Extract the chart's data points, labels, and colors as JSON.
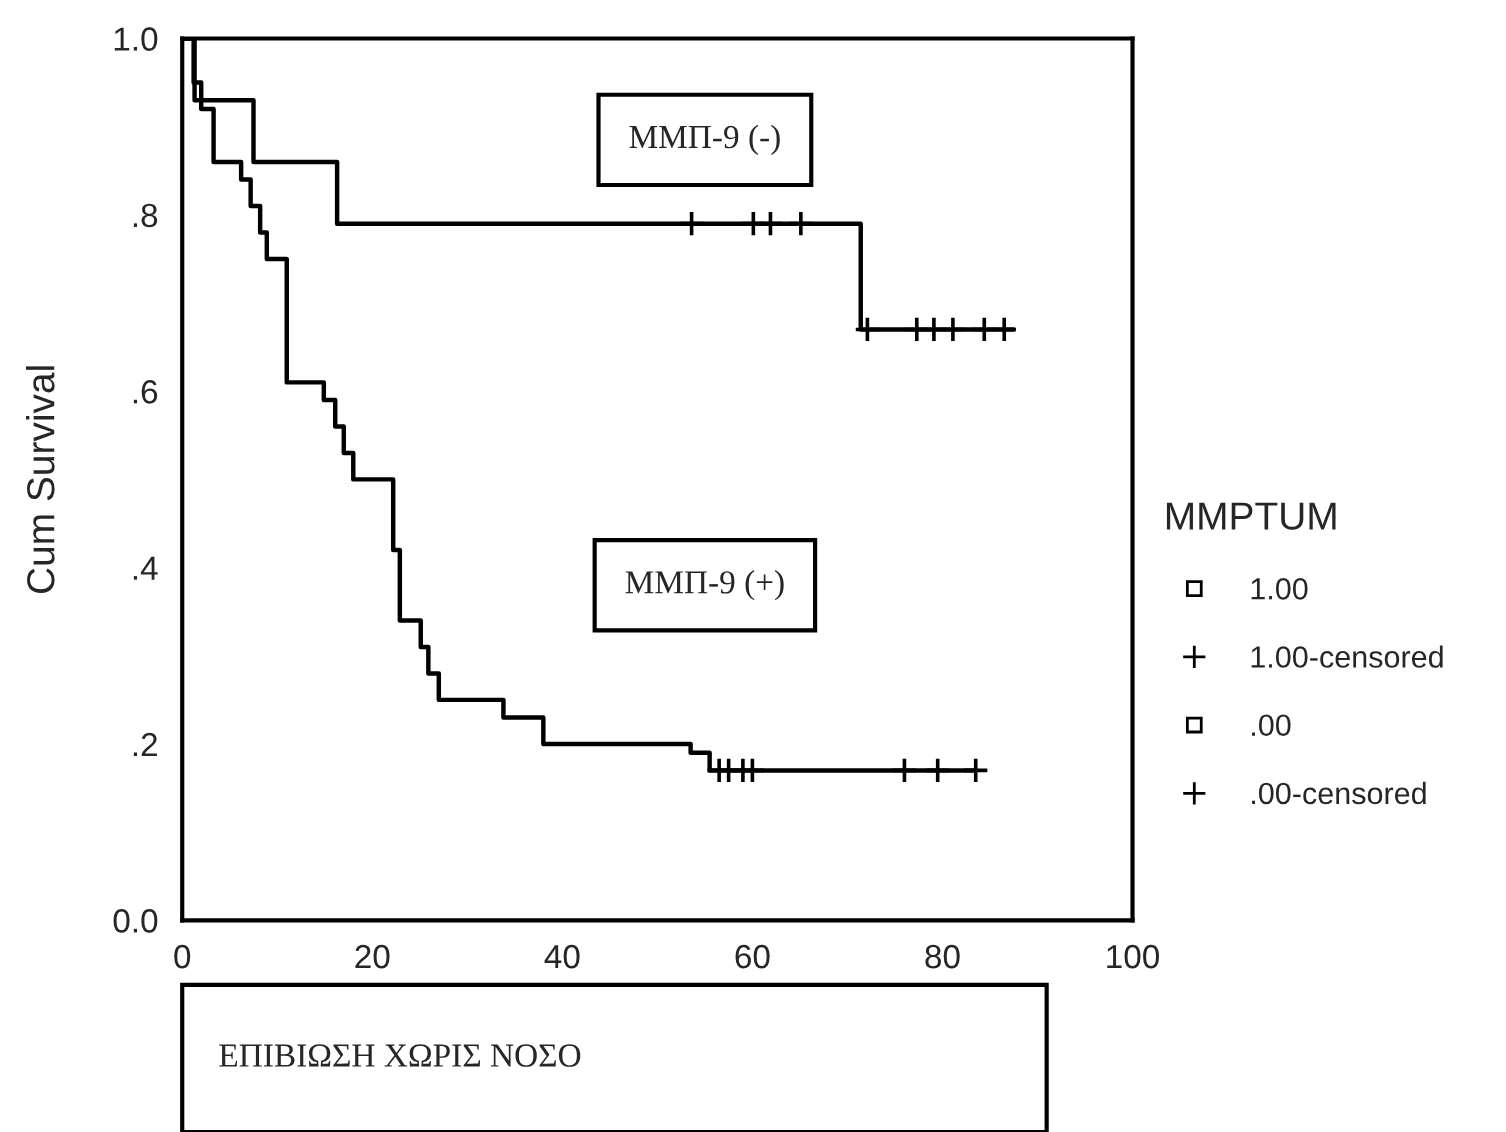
{
  "chart_data": {
    "type": "step",
    "ylabel": "Cum Survival",
    "xlabel": "ΕΠΙΒΙΩΣΗ ΧΩΡΙΣ ΝΟΣΟ",
    "legend_title": "MMPTUM",
    "legend": "right",
    "annotations": [
      "ΜΜΠ-9 (-)",
      "ΜΜΠ-9 (+)"
    ],
    "xlim": [
      0,
      100
    ],
    "xticks": [
      0,
      20,
      40,
      60,
      80,
      100
    ],
    "ylim": [
      0,
      1
    ],
    "yticks": [
      {
        "value": 0,
        "label": "0.0"
      },
      {
        "value": 0.2,
        "label": ".2"
      },
      {
        "value": 0.4,
        "label": ".4"
      },
      {
        "value": 0.6,
        "label": ".6"
      },
      {
        "value": 0.8,
        "label": ".8"
      },
      {
        "value": 1,
        "label": "1.0"
      }
    ],
    "grid": false,
    "series": [
      {
        "name": "1.00",
        "color": "#000000",
        "x": [
          0,
          1.2,
          2.0,
          3.3,
          6.2,
          7.2,
          8.2,
          8.9,
          11.0,
          14.9,
          16.1,
          17.0,
          18.0,
          22.2,
          22.9,
          25.1,
          25.9,
          27.0,
          33.8,
          38.0,
          53.5,
          55.5,
          83.5
        ],
        "values": [
          1.0,
          0.95,
          0.92,
          0.86,
          0.84,
          0.81,
          0.78,
          0.75,
          0.61,
          0.59,
          0.56,
          0.53,
          0.5,
          0.42,
          0.34,
          0.31,
          0.28,
          0.25,
          0.23,
          0.2,
          0.19,
          0.17,
          0.17
        ]
      },
      {
        "name": "1.00-censored",
        "type": "scatter",
        "marker": "cross",
        "color": "#000000",
        "x": [
          56.5,
          57.5,
          59,
          60,
          76,
          79.5,
          83.5
        ],
        "values": [
          0.17,
          0.17,
          0.17,
          0.17,
          0.17,
          0.17,
          0.17
        ]
      },
      {
        "name": ".00",
        "color": "#000000",
        "x": [
          0,
          1.3,
          7.5,
          16.3,
          71.4,
          87.5
        ],
        "values": [
          1.0,
          0.93,
          0.86,
          0.79,
          0.67,
          0.67
        ]
      },
      {
        "name": ".00-censored",
        "type": "scatter",
        "marker": "cross",
        "color": "#000000",
        "x": [
          53.6,
          60.1,
          61.9,
          65.1,
          72.1,
          77.3,
          79.1,
          81.1,
          84.4,
          86.5
        ],
        "values": [
          0.79,
          0.79,
          0.79,
          0.79,
          0.67,
          0.67,
          0.67,
          0.67,
          0.67,
          0.67
        ]
      }
    ]
  }
}
